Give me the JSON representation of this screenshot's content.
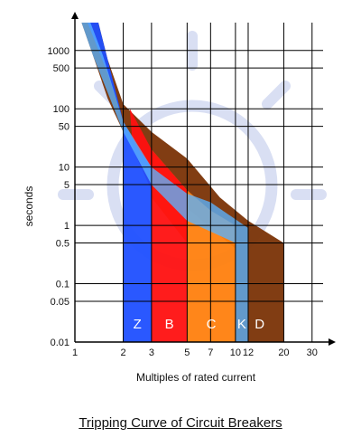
{
  "chart_data": {
    "type": "area",
    "title": "Tripping Curve of Circuit Breakers",
    "xlabel": "Multiples of rated current",
    "ylabel": "seconds",
    "x_scale": "log",
    "y_scale": "log",
    "xlim": [
      1,
      40
    ],
    "ylim": [
      0.01,
      3000
    ],
    "x_ticks": [
      1,
      2,
      3,
      5,
      7,
      10,
      12,
      20,
      30
    ],
    "y_ticks": [
      0.01,
      0.05,
      0.1,
      0.5,
      1,
      5,
      10,
      50,
      100,
      500,
      1000
    ],
    "grid": true,
    "series": [
      {
        "name": "D",
        "color": "#7a3306",
        "upper": [
          [
            1.4,
            3000
          ],
          [
            1.6,
            700
          ],
          [
            2,
            120
          ],
          [
            3,
            40
          ],
          [
            5,
            14
          ],
          [
            8,
            3
          ],
          [
            12,
            1.2
          ],
          [
            20,
            0.5
          ]
        ],
        "lower": [
          [
            1.1,
            3000
          ],
          [
            1.3,
            800
          ],
          [
            1.6,
            150
          ],
          [
            2,
            40
          ],
          [
            3,
            8
          ],
          [
            5,
            2
          ],
          [
            7,
            0.9
          ],
          [
            10,
            0.4
          ],
          [
            10,
            0.01
          ],
          [
            20,
            0.01
          ]
        ]
      },
      {
        "name": "C",
        "color": "#ff7f0e",
        "upper": [
          [
            3,
            20
          ],
          [
            5,
            4
          ],
          [
            7,
            1.8
          ],
          [
            10,
            1
          ]
        ],
        "lower": [
          [
            3,
            3
          ],
          [
            5,
            0.5
          ],
          [
            5,
            0.01
          ],
          [
            10,
            0.01
          ]
        ]
      },
      {
        "name": "B",
        "color": "#ff1010",
        "upper": [
          [
            2.2,
            100
          ],
          [
            3,
            20
          ],
          [
            5,
            4
          ]
        ],
        "lower": [
          [
            2.3,
            20
          ],
          [
            3,
            4
          ],
          [
            3,
            0.01
          ],
          [
            5,
            0.01
          ]
        ]
      },
      {
        "name": "Z",
        "color": "#1f4fff",
        "upper": [
          [
            1.4,
            3000
          ],
          [
            2,
            60
          ],
          [
            2.5,
            20
          ],
          [
            3,
            10
          ]
        ],
        "lower": [
          [
            1.2,
            3000
          ],
          [
            1.6,
            400
          ],
          [
            2,
            60
          ],
          [
            2,
            0.01
          ],
          [
            3,
            0.01
          ]
        ]
      },
      {
        "name": "K",
        "color": "#5ab4ff",
        "upper": [
          [
            1.25,
            3000
          ],
          [
            1.5,
            800
          ],
          [
            2,
            60
          ],
          [
            3,
            10
          ],
          [
            5,
            3.5
          ],
          [
            7,
            2.5
          ],
          [
            12,
            0.9
          ]
        ],
        "lower": [
          [
            1.1,
            3000
          ],
          [
            1.3,
            800
          ],
          [
            2,
            40
          ],
          [
            3,
            5
          ],
          [
            5,
            1.2
          ],
          [
            10,
            0.5
          ],
          [
            10,
            0.01
          ],
          [
            12,
            0.01
          ]
        ]
      }
    ]
  }
}
